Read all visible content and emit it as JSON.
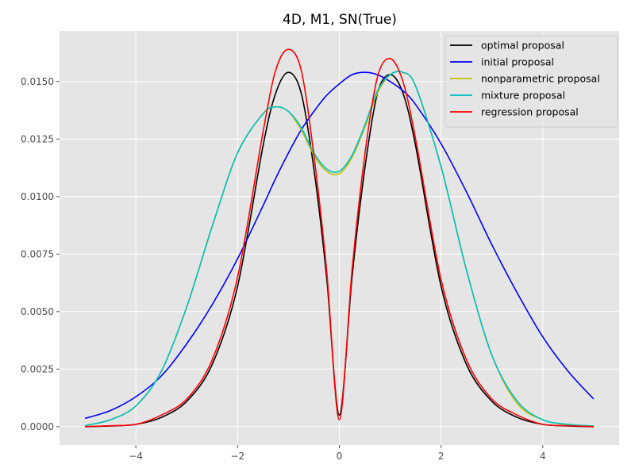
{
  "chart_data": {
    "type": "line",
    "title": "4D, M1, SN(True)",
    "xlabel": "",
    "ylabel": "",
    "xlim": [
      -5.5,
      5.5
    ],
    "ylim": [
      -0.0008,
      0.0172
    ],
    "xticks": [
      -4,
      -2,
      0,
      2,
      4
    ],
    "xtick_labels": [
      "−4",
      "−2",
      "0",
      "2",
      "4"
    ],
    "yticks": [
      0.0,
      0.0025,
      0.005,
      0.0075,
      0.01,
      0.0125,
      0.015
    ],
    "ytick_labels": [
      "0.0000",
      "0.0025",
      "0.0050",
      "0.0075",
      "0.0100",
      "0.0125",
      "0.0150"
    ],
    "grid": true,
    "legend_position": "top-right",
    "x": [
      -5.0,
      -4.5,
      -4.0,
      -3.5,
      -3.0,
      -2.5,
      -2.0,
      -1.5,
      -1.25,
      -1.0,
      -0.75,
      -0.5,
      -0.25,
      0.0,
      0.25,
      0.5,
      0.75,
      1.0,
      1.25,
      1.5,
      2.0,
      2.5,
      3.0,
      3.5,
      4.0,
      4.5,
      5.0
    ],
    "series": [
      {
        "name": "optimal proposal",
        "color": "#000000",
        "values": [
          0.0,
          3e-05,
          0.0001,
          0.0004,
          0.0011,
          0.0027,
          0.0061,
          0.0122,
          0.0145,
          0.0154,
          0.0145,
          0.0112,
          0.0065,
          0.0005,
          0.0065,
          0.0112,
          0.0145,
          0.0153,
          0.0145,
          0.0122,
          0.0061,
          0.0027,
          0.0011,
          0.0004,
          0.0001,
          3e-05,
          0.0
        ]
      },
      {
        "name": "initial proposal",
        "color": "#0000ff",
        "values": [
          0.00036,
          0.0007,
          0.0013,
          0.0022,
          0.0036,
          0.0053,
          0.0073,
          0.0096,
          0.0108,
          0.0119,
          0.0129,
          0.0137,
          0.0144,
          0.0149,
          0.0153,
          0.0154,
          0.0153,
          0.015,
          0.0146,
          0.014,
          0.0123,
          0.0102,
          0.0079,
          0.0058,
          0.0039,
          0.0024,
          0.0012
        ]
      },
      {
        "name": "nonparametric proposal",
        "color": "#bfbf00",
        "values": [
          5e-05,
          0.0003,
          0.0009,
          0.0024,
          0.0052,
          0.0087,
          0.0119,
          0.0136,
          0.0139,
          0.0137,
          0.0129,
          0.0118,
          0.0111,
          0.011,
          0.0117,
          0.013,
          0.0145,
          0.0153,
          0.0154,
          0.0148,
          0.0113,
          0.0068,
          0.0031,
          0.001,
          0.0003,
          8e-05,
          2e-05
        ]
      },
      {
        "name": "mixture proposal",
        "color": "#00bfbf",
        "values": [
          5e-05,
          0.0003,
          0.0009,
          0.0024,
          0.0052,
          0.0087,
          0.0119,
          0.0136,
          0.0139,
          0.0137,
          0.013,
          0.0119,
          0.0112,
          0.0111,
          0.0118,
          0.0131,
          0.0146,
          0.0153,
          0.0154,
          0.0148,
          0.0113,
          0.0068,
          0.0031,
          0.0011,
          0.0003,
          0.0001,
          3e-05
        ]
      },
      {
        "name": "regression proposal",
        "color": "#ff0000",
        "values": [
          0.0,
          4e-05,
          0.0001,
          0.0005,
          0.0012,
          0.0029,
          0.0065,
          0.0128,
          0.0155,
          0.0164,
          0.0155,
          0.0118,
          0.0068,
          0.0003,
          0.0068,
          0.0118,
          0.0152,
          0.016,
          0.015,
          0.0125,
          0.0064,
          0.0029,
          0.0012,
          0.0005,
          0.0001,
          4e-05,
          0.0
        ]
      }
    ]
  }
}
